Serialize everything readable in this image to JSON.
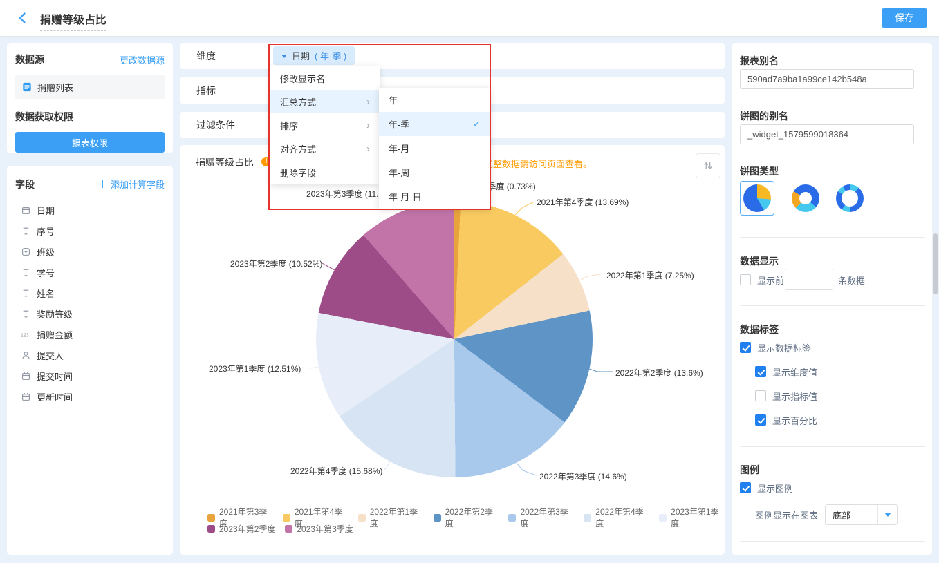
{
  "header": {
    "title": "捐赠等级占比",
    "save_label": "保存"
  },
  "datasource_panel": {
    "title": "数据源",
    "change_link": "更改数据源",
    "source_name": "捐赠列表",
    "permission_title": "数据获取权限",
    "permission_button": "报表权限"
  },
  "fields_panel": {
    "title": "字段",
    "add_link": "添加计算字段",
    "fields": [
      {
        "icon": "calendar-icon",
        "label": "日期"
      },
      {
        "icon": "text-icon",
        "label": "序号"
      },
      {
        "icon": "select-icon",
        "label": "班级"
      },
      {
        "icon": "text-icon",
        "label": "学号"
      },
      {
        "icon": "text-icon",
        "label": "姓名"
      },
      {
        "icon": "text-icon",
        "label": "奖励等级"
      },
      {
        "icon": "number-icon",
        "label": "捐赠金额"
      },
      {
        "icon": "user-icon",
        "label": "提交人"
      },
      {
        "icon": "calendar-icon",
        "label": "提交时间"
      },
      {
        "icon": "calendar-icon",
        "label": "更新时间"
      }
    ]
  },
  "config_rows": {
    "dimension_label": "维度",
    "metric_label": "指标",
    "filter_label": "过滤条件"
  },
  "dimension_pill": {
    "field": "日期",
    "granularity": "( 年-季 )"
  },
  "context_menu": {
    "items": [
      {
        "label": "修改显示名",
        "has_submenu": false,
        "active": false
      },
      {
        "label": "汇总方式",
        "has_submenu": true,
        "active": true
      },
      {
        "label": "排序",
        "has_submenu": true,
        "active": false
      },
      {
        "label": "对齐方式",
        "has_submenu": true,
        "active": false
      },
      {
        "label": "删除字段",
        "has_submenu": false,
        "active": false
      }
    ],
    "submenu": [
      {
        "label": "年",
        "selected": false
      },
      {
        "label": "年-季",
        "selected": true
      },
      {
        "label": "年-月",
        "selected": false
      },
      {
        "label": "年-周",
        "selected": false
      },
      {
        "label": "年-月-日",
        "selected": false
      }
    ]
  },
  "chart_card": {
    "title": "捐赠等级占比",
    "warning_text": "完整数据请访问页面查看。"
  },
  "chart_data": {
    "type": "pie",
    "title": "捐赠等级占比",
    "categories": [
      "2021年第3季度",
      "2021年第4季度",
      "2022年第1季度",
      "2022年第2季度",
      "2022年第3季度",
      "2022年第4季度",
      "2023年第1季度",
      "2023年第2季度",
      "2023年第3季度"
    ],
    "values_percent": [
      0.73,
      13.69,
      7.25,
      13.6,
      14.6,
      15.68,
      12.51,
      10.52,
      11.42
    ],
    "colors": [
      "#E8A33D",
      "#F8CA60",
      "#F6E0C8",
      "#5E94C6",
      "#A8C8EC",
      "#D7E4F4",
      "#E7EEF9",
      "#9D4C87",
      "#C274A9"
    ],
    "label_format": "{category} ({value}%)",
    "legend_position": "bottom",
    "legend_rows": [
      7,
      2
    ]
  },
  "settings_panel": {
    "report_alias_label": "报表别名",
    "report_alias_value": "590ad7a9ba1a99ce142b548a",
    "pie_alias_label": "饼图的别名",
    "pie_alias_value": "_widget_1579599018364",
    "pie_type_label": "饼图类型",
    "data_display": {
      "title": "数据显示",
      "prefix_label": "显示前",
      "suffix_label": "条数据",
      "checked": false,
      "input_value": ""
    },
    "data_label": {
      "title": "数据标签",
      "show_label": {
        "label": "显示数据标签",
        "checked": true
      },
      "children": [
        {
          "label": "显示维度值",
          "checked": true
        },
        {
          "label": "显示指标值",
          "checked": false
        },
        {
          "label": "显示百分比",
          "checked": true
        }
      ]
    },
    "legend": {
      "title": "图例",
      "show_label": {
        "label": "显示图例",
        "checked": true
      },
      "position_label": "图例显示在图表",
      "position_value": "底部"
    }
  },
  "colors": {
    "accent_blue": "#3BA0F5",
    "checkbox_blue": "#2080EF",
    "warning_orange": "#FF9C00",
    "annotation_red": "#E5342E"
  }
}
